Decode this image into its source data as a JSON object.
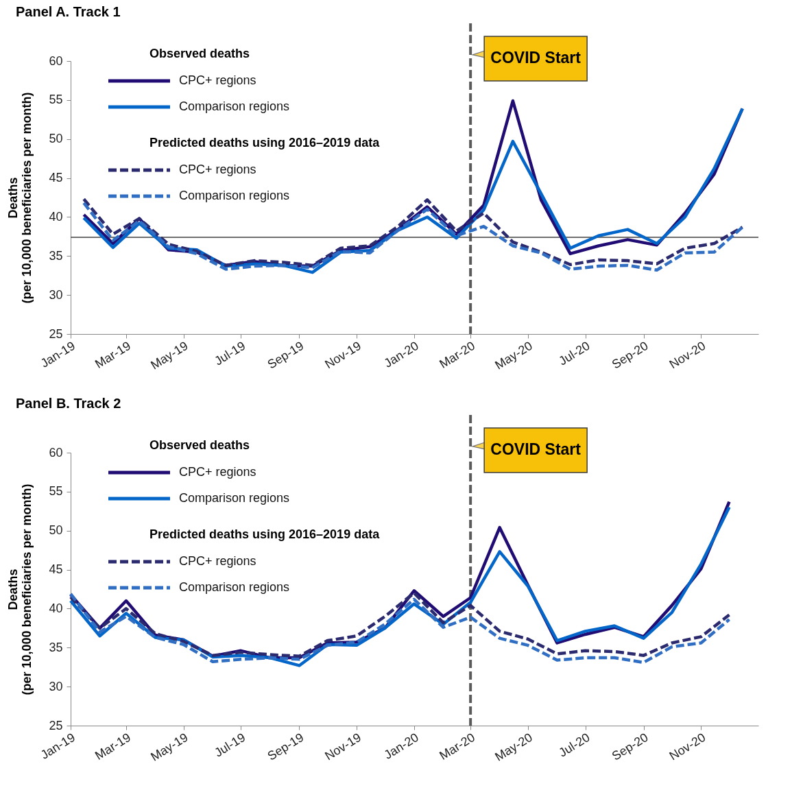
{
  "chart_data": [
    {
      "type": "line",
      "title": "Panel A. Track 1",
      "ylabel": "Deaths\n(per 10,000 beneficiaries per month)",
      "annotations": [
        "Observed deaths",
        "Predicted deaths using 2016–2019 data"
      ],
      "x": [
        "2019-01-15",
        "2019-02-15",
        "2019-03-15",
        "2019-04-15",
        "2019-05-15",
        "2019-06-15",
        "2019-07-15",
        "2019-08-15",
        "2019-09-15",
        "2019-10-15",
        "2019-11-15",
        "2019-12-15",
        "2020-01-15",
        "2020-02-15",
        "2020-03-15",
        "2020-04-15",
        "2020-05-15",
        "2020-06-15",
        "2020-07-15",
        "2020-08-15",
        "2020-09-15",
        "2020-10-15",
        "2020-11-15",
        "2020-12-15"
      ],
      "series": [
        {
          "name": "CPC+ regions",
          "color": "#200c73",
          "line_style": "solid",
          "values": [
            40.3,
            36.6,
            39.8,
            35.8,
            35.5,
            33.8,
            34.3,
            33.8,
            33.7,
            35.7,
            36.2,
            38.4,
            41.3,
            37.8,
            41.5,
            54.9,
            42.2,
            35.3,
            36.3,
            37.1,
            36.4,
            40.5,
            45.5,
            53.9
          ]
        },
        {
          "name": "Comparison regions",
          "color": "#0566c9",
          "line_style": "solid",
          "values": [
            39.9,
            36.1,
            39.2,
            36.0,
            35.8,
            33.7,
            34.0,
            33.8,
            32.9,
            35.5,
            35.7,
            38.3,
            40.0,
            37.3,
            40.9,
            49.7,
            43.0,
            36.0,
            37.6,
            38.4,
            36.6,
            40.0,
            46.2,
            53.9
          ]
        },
        {
          "name": "CPC+ regions",
          "color": "#2b2a6e",
          "line_style": "dashed",
          "values": [
            42.3,
            37.8,
            39.8,
            36.5,
            35.6,
            33.8,
            34.4,
            34.2,
            33.8,
            36.0,
            36.3,
            38.8,
            42.2,
            38.2,
            40.5,
            36.8,
            35.5,
            33.9,
            34.5,
            34.4,
            34.0,
            36.0,
            36.6,
            38.7
          ]
        },
        {
          "name": "Comparison regions",
          "color": "#2f6ec2",
          "line_style": "dashed",
          "values": [
            41.8,
            37.0,
            39.5,
            36.2,
            35.3,
            33.3,
            33.7,
            33.8,
            33.5,
            35.6,
            35.4,
            38.3,
            41.0,
            37.6,
            38.8,
            36.3,
            35.4,
            33.3,
            33.7,
            33.8,
            33.2,
            35.4,
            35.5,
            38.7
          ]
        }
      ],
      "xlim": [
        "2019-01-01",
        "2021-01-01"
      ],
      "xticks": [
        {
          "value": "2019-01-01",
          "label": "Jan-19"
        },
        {
          "value": "2019-03-01",
          "label": "Mar-19"
        },
        {
          "value": "2019-05-01",
          "label": "May-19"
        },
        {
          "value": "2019-07-01",
          "label": "Jul-19"
        },
        {
          "value": "2019-09-01",
          "label": "Sep-19"
        },
        {
          "value": "2019-11-01",
          "label": "Nov-19"
        },
        {
          "value": "2020-01-01",
          "label": "Jan-20"
        },
        {
          "value": "2020-03-01",
          "label": "Mar-20"
        },
        {
          "value": "2020-05-01",
          "label": "May-20"
        },
        {
          "value": "2020-07-01",
          "label": "Jul-20"
        },
        {
          "value": "2020-09-01",
          "label": "Sep-20"
        },
        {
          "value": "2020-11-01",
          "label": "Nov-20"
        }
      ],
      "ylim": [
        25,
        60
      ],
      "yticks": [
        25,
        30,
        35,
        40,
        45,
        50,
        55,
        60
      ],
      "ref_lines": [
        {
          "axis": "x",
          "value": "2020-03-01",
          "label": "COVID Start",
          "color": "#5a5a5a",
          "line_style": "dashed"
        },
        {
          "axis": "y",
          "value": 37.4,
          "color": "#404040",
          "line_style": "solid"
        }
      ],
      "legend": "top left"
    },
    {
      "type": "line",
      "title": "Panel B. Track 2",
      "ylabel": "Deaths\n(per 10,000 beneficiaries per month)",
      "annotations": [
        "Observed deaths",
        "Predicted deaths using 2016–2019 data"
      ],
      "x": [
        "2019-01-01",
        "2019-02-01",
        "2019-03-01",
        "2019-04-01",
        "2019-05-01",
        "2019-06-01",
        "2019-07-01",
        "2019-08-01",
        "2019-09-01",
        "2019-10-01",
        "2019-11-01",
        "2019-12-01",
        "2020-01-01",
        "2020-02-01",
        "2020-03-01",
        "2020-04-01",
        "2020-05-01",
        "2020-06-01",
        "2020-07-01",
        "2020-08-01",
        "2020-09-01",
        "2020-10-01",
        "2020-11-01",
        "2020-12-01"
      ],
      "series": [
        {
          "name": "CPC+ regions",
          "color": "#200c73",
          "line_style": "solid",
          "values": [
            41.8,
            37.5,
            41.0,
            36.6,
            36.0,
            33.9,
            34.6,
            33.7,
            33.7,
            35.6,
            35.7,
            37.5,
            42.3,
            39.0,
            41.4,
            50.4,
            43.0,
            35.6,
            36.7,
            37.6,
            36.4,
            40.4,
            45.1,
            53.7
          ]
        },
        {
          "name": "Comparison regions",
          "color": "#0566c9",
          "line_style": "solid",
          "values": [
            41.0,
            36.5,
            39.4,
            36.3,
            36.0,
            33.8,
            34.0,
            33.7,
            32.7,
            35.4,
            35.3,
            37.5,
            40.6,
            38.0,
            40.8,
            47.3,
            42.9,
            35.9,
            37.1,
            37.8,
            36.2,
            39.5,
            45.7,
            53.0
          ]
        },
        {
          "name": "CPC+ regions",
          "color": "#2b2a6e",
          "line_style": "dashed",
          "values": [
            41.5,
            37.5,
            40.0,
            36.8,
            35.8,
            34.0,
            34.4,
            34.1,
            33.9,
            35.9,
            36.5,
            39.0,
            42.0,
            38.2,
            40.4,
            37.1,
            36.1,
            34.2,
            34.6,
            34.5,
            34.0,
            35.6,
            36.4,
            39.2
          ]
        },
        {
          "name": "Comparison regions",
          "color": "#2f6ec2",
          "line_style": "dashed",
          "values": [
            41.9,
            37.0,
            39.0,
            36.3,
            35.4,
            33.2,
            33.5,
            33.7,
            33.5,
            35.3,
            35.7,
            38.0,
            41.2,
            37.6,
            38.9,
            36.2,
            35.3,
            33.4,
            33.7,
            33.7,
            33.1,
            35.1,
            35.6,
            38.6
          ]
        }
      ],
      "xlim": [
        "2019-01-01",
        "2021-01-01"
      ],
      "xticks": [
        {
          "value": "2019-01-01",
          "label": "Jan-19"
        },
        {
          "value": "2019-03-01",
          "label": "Mar-19"
        },
        {
          "value": "2019-05-01",
          "label": "May-19"
        },
        {
          "value": "2019-07-01",
          "label": "Jul-19"
        },
        {
          "value": "2019-09-01",
          "label": "Sep-19"
        },
        {
          "value": "2019-11-01",
          "label": "Nov-19"
        },
        {
          "value": "2020-01-01",
          "label": "Jan-20"
        },
        {
          "value": "2020-03-01",
          "label": "Mar-20"
        },
        {
          "value": "2020-05-01",
          "label": "May-20"
        },
        {
          "value": "2020-07-01",
          "label": "Jul-20"
        },
        {
          "value": "2020-09-01",
          "label": "Sep-20"
        },
        {
          "value": "2020-11-01",
          "label": "Nov-20"
        }
      ],
      "ylim": [
        25,
        60
      ],
      "yticks": [
        25,
        30,
        35,
        40,
        45,
        50,
        55,
        60
      ],
      "ref_lines": [
        {
          "axis": "x",
          "value": "2020-03-01",
          "label": "COVID Start",
          "color": "#5a5a5a",
          "line_style": "dashed"
        }
      ],
      "legend": "top left"
    }
  ]
}
